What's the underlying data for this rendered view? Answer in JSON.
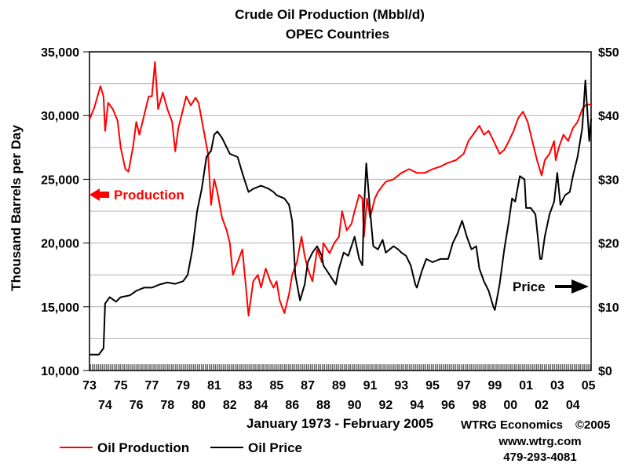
{
  "chart_data": {
    "type": "line",
    "title": "Crude Oil Production (Mbbl/d)",
    "subtitle": "OPEC Countries",
    "ylabel": "Thousand Barrels per Day",
    "xlabel": "January 1973 - February 2005",
    "ylim": [
      10000,
      35000
    ],
    "y2lim": [
      0,
      50
    ],
    "xlim": [
      1973,
      2005.17
    ],
    "y_ticks": [
      10000,
      15000,
      20000,
      25000,
      30000,
      35000
    ],
    "y_tick_labels": [
      "10,000",
      "15,000",
      "20,000",
      "25,000",
      "30,000",
      "35,000"
    ],
    "y2_ticks": [
      0,
      10,
      20,
      30,
      40,
      50
    ],
    "y2_tick_labels": [
      "$0",
      "$10",
      "$20",
      "$30",
      "$40",
      "$50"
    ],
    "x_ticks_top": [
      {
        "year": 1973,
        "label": "73"
      },
      {
        "year": 1975,
        "label": "75"
      },
      {
        "year": 1977,
        "label": "77"
      },
      {
        "year": 1979,
        "label": "79"
      },
      {
        "year": 1981,
        "label": "81"
      },
      {
        "year": 1983,
        "label": "83"
      },
      {
        "year": 1985,
        "label": "85"
      },
      {
        "year": 1987,
        "label": "87"
      },
      {
        "year": 1989,
        "label": "89"
      },
      {
        "year": 1991,
        "label": "91"
      },
      {
        "year": 1993,
        "label": "93"
      },
      {
        "year": 1995,
        "label": "95"
      },
      {
        "year": 1997,
        "label": "97"
      },
      {
        "year": 1999,
        "label": "99"
      },
      {
        "year": 2001,
        "label": "01"
      },
      {
        "year": 2003,
        "label": "03"
      },
      {
        "year": 2005,
        "label": "05"
      }
    ],
    "x_ticks_bottom": [
      {
        "year": 1974,
        "label": "74"
      },
      {
        "year": 1976,
        "label": "76"
      },
      {
        "year": 1978,
        "label": "78"
      },
      {
        "year": 1980,
        "label": "80"
      },
      {
        "year": 1982,
        "label": "82"
      },
      {
        "year": 1984,
        "label": "84"
      },
      {
        "year": 1986,
        "label": "86"
      },
      {
        "year": 1988,
        "label": "88"
      },
      {
        "year": 1990,
        "label": "90"
      },
      {
        "year": 1992,
        "label": "92"
      },
      {
        "year": 1994,
        "label": "94"
      },
      {
        "year": 1996,
        "label": "96"
      },
      {
        "year": 1998,
        "label": "98"
      },
      {
        "year": 2000,
        "label": "00"
      },
      {
        "year": 2002,
        "label": "02"
      },
      {
        "year": 2004,
        "label": "04"
      }
    ],
    "grid": true,
    "legend_position": "bottom-left",
    "series": [
      {
        "name": "Oil Production",
        "axis": "left",
        "color": "#ff0000",
        "points": [
          [
            1973.0,
            29700
          ],
          [
            1973.3,
            30600
          ],
          [
            1973.7,
            32300
          ],
          [
            1973.9,
            31500
          ],
          [
            1974.0,
            28800
          ],
          [
            1974.2,
            31000
          ],
          [
            1974.5,
            30500
          ],
          [
            1974.8,
            29600
          ],
          [
            1975.0,
            27500
          ],
          [
            1975.3,
            25800
          ],
          [
            1975.5,
            25600
          ],
          [
            1975.8,
            27600
          ],
          [
            1976.0,
            29500
          ],
          [
            1976.2,
            28500
          ],
          [
            1976.5,
            30000
          ],
          [
            1976.8,
            31500
          ],
          [
            1977.0,
            31500
          ],
          [
            1977.2,
            34200
          ],
          [
            1977.4,
            30500
          ],
          [
            1977.7,
            31800
          ],
          [
            1978.0,
            30500
          ],
          [
            1978.3,
            29500
          ],
          [
            1978.5,
            27200
          ],
          [
            1978.7,
            29000
          ],
          [
            1979.0,
            30500
          ],
          [
            1979.2,
            31500
          ],
          [
            1979.5,
            30800
          ],
          [
            1979.8,
            31400
          ],
          [
            1980.0,
            31000
          ],
          [
            1980.3,
            29000
          ],
          [
            1980.6,
            27000
          ],
          [
            1980.8,
            23000
          ],
          [
            1981.0,
            25000
          ],
          [
            1981.2,
            24000
          ],
          [
            1981.5,
            22000
          ],
          [
            1981.8,
            21000
          ],
          [
            1982.0,
            20000
          ],
          [
            1982.2,
            17500
          ],
          [
            1982.5,
            18500
          ],
          [
            1982.8,
            19500
          ],
          [
            1983.0,
            17000
          ],
          [
            1983.2,
            14300
          ],
          [
            1983.5,
            17000
          ],
          [
            1983.8,
            17500
          ],
          [
            1984.0,
            16500
          ],
          [
            1984.3,
            18000
          ],
          [
            1984.6,
            17000
          ],
          [
            1984.8,
            16500
          ],
          [
            1985.0,
            17000
          ],
          [
            1985.2,
            15500
          ],
          [
            1985.5,
            14500
          ],
          [
            1985.8,
            16000
          ],
          [
            1986.0,
            17500
          ],
          [
            1986.3,
            18500
          ],
          [
            1986.6,
            20500
          ],
          [
            1986.8,
            19000
          ],
          [
            1987.0,
            18000
          ],
          [
            1987.3,
            17000
          ],
          [
            1987.6,
            19500
          ],
          [
            1987.9,
            18500
          ],
          [
            1988.0,
            20000
          ],
          [
            1988.4,
            19200
          ],
          [
            1988.7,
            20000
          ],
          [
            1989.0,
            20500
          ],
          [
            1989.2,
            22500
          ],
          [
            1989.5,
            21000
          ],
          [
            1989.8,
            21500
          ],
          [
            1990.0,
            22500
          ],
          [
            1990.3,
            23800
          ],
          [
            1990.5,
            23500
          ],
          [
            1990.6,
            20500
          ],
          [
            1990.8,
            23500
          ],
          [
            1991.0,
            22000
          ],
          [
            1991.3,
            23500
          ],
          [
            1991.5,
            24000
          ],
          [
            1991.8,
            24500
          ],
          [
            1992.0,
            24800
          ],
          [
            1992.5,
            25000
          ],
          [
            1993.0,
            25500
          ],
          [
            1993.5,
            25800
          ],
          [
            1994.0,
            25500
          ],
          [
            1994.5,
            25500
          ],
          [
            1995.0,
            25800
          ],
          [
            1995.5,
            26000
          ],
          [
            1996.0,
            26300
          ],
          [
            1996.5,
            26500
          ],
          [
            1997.0,
            27000
          ],
          [
            1997.3,
            28000
          ],
          [
            1997.6,
            28500
          ],
          [
            1998.0,
            29200
          ],
          [
            1998.3,
            28500
          ],
          [
            1998.6,
            28800
          ],
          [
            1999.0,
            27800
          ],
          [
            1999.3,
            27000
          ],
          [
            1999.6,
            27300
          ],
          [
            1999.9,
            28000
          ],
          [
            2000.2,
            28800
          ],
          [
            2000.5,
            29800
          ],
          [
            2000.8,
            30300
          ],
          [
            2001.1,
            29500
          ],
          [
            2001.4,
            28000
          ],
          [
            2001.7,
            26500
          ],
          [
            2002.0,
            25300
          ],
          [
            2002.2,
            26500
          ],
          [
            2002.5,
            27000
          ],
          [
            2002.8,
            28000
          ],
          [
            2002.9,
            26500
          ],
          [
            2003.1,
            27500
          ],
          [
            2003.4,
            28500
          ],
          [
            2003.7,
            28000
          ],
          [
            2004.0,
            29000
          ],
          [
            2004.3,
            29500
          ],
          [
            2004.6,
            30500
          ],
          [
            2004.8,
            30800
          ],
          [
            2005.17,
            30900
          ]
        ]
      },
      {
        "name": "Oil Price",
        "axis": "right",
        "color": "#000000",
        "points": [
          [
            1973.0,
            2.5
          ],
          [
            1973.6,
            2.5
          ],
          [
            1973.9,
            3.5
          ],
          [
            1974.0,
            10.5
          ],
          [
            1974.3,
            11.5
          ],
          [
            1974.7,
            10.8
          ],
          [
            1975.0,
            11.5
          ],
          [
            1975.6,
            11.8
          ],
          [
            1976.0,
            12.5
          ],
          [
            1976.3,
            12.8
          ],
          [
            1976.5,
            13.0
          ],
          [
            1977.0,
            13.0
          ],
          [
            1977.5,
            13.5
          ],
          [
            1978.0,
            13.8
          ],
          [
            1978.5,
            13.6
          ],
          [
            1979.0,
            14.0
          ],
          [
            1979.3,
            15.0
          ],
          [
            1979.6,
            19.0
          ],
          [
            1979.9,
            25.0
          ],
          [
            1980.2,
            28.5
          ],
          [
            1980.5,
            33.5
          ],
          [
            1980.8,
            34.5
          ],
          [
            1981.0,
            37.0
          ],
          [
            1981.2,
            37.5
          ],
          [
            1981.5,
            36.5
          ],
          [
            1981.8,
            35.0
          ],
          [
            1982.0,
            34.0
          ],
          [
            1982.5,
            33.5
          ],
          [
            1982.8,
            31.0
          ],
          [
            1983.0,
            29.5
          ],
          [
            1983.2,
            28.0
          ],
          [
            1983.5,
            28.5
          ],
          [
            1984.0,
            29.0
          ],
          [
            1984.5,
            28.5
          ],
          [
            1984.8,
            28.0
          ],
          [
            1985.0,
            27.5
          ],
          [
            1985.5,
            27.0
          ],
          [
            1985.8,
            26.0
          ],
          [
            1986.0,
            23.5
          ],
          [
            1986.2,
            15.0
          ],
          [
            1986.5,
            11.0
          ],
          [
            1986.8,
            13.5
          ],
          [
            1987.0,
            17.0
          ],
          [
            1987.3,
            18.5
          ],
          [
            1987.6,
            19.5
          ],
          [
            1987.9,
            18.0
          ],
          [
            1988.0,
            16.5
          ],
          [
            1988.4,
            15.0
          ],
          [
            1988.8,
            13.5
          ],
          [
            1989.0,
            16.0
          ],
          [
            1989.3,
            18.5
          ],
          [
            1989.6,
            18.0
          ],
          [
            1989.8,
            19.5
          ],
          [
            1990.0,
            21.0
          ],
          [
            1990.3,
            17.5
          ],
          [
            1990.5,
            16.5
          ],
          [
            1990.6,
            25.0
          ],
          [
            1990.75,
            32.5
          ],
          [
            1990.9,
            28.0
          ],
          [
            1991.0,
            25.0
          ],
          [
            1991.2,
            19.5
          ],
          [
            1991.5,
            19.0
          ],
          [
            1991.8,
            20.5
          ],
          [
            1992.0,
            18.5
          ],
          [
            1992.5,
            19.5
          ],
          [
            1992.8,
            19.0
          ],
          [
            1993.0,
            18.5
          ],
          [
            1993.3,
            18.0
          ],
          [
            1993.6,
            16.5
          ],
          [
            1993.9,
            13.5
          ],
          [
            1994.0,
            13.0
          ],
          [
            1994.3,
            15.5
          ],
          [
            1994.6,
            17.5
          ],
          [
            1995.0,
            17.0
          ],
          [
            1995.5,
            17.5
          ],
          [
            1996.0,
            17.5
          ],
          [
            1996.3,
            20.0
          ],
          [
            1996.6,
            21.5
          ],
          [
            1996.9,
            23.5
          ],
          [
            1997.2,
            21.0
          ],
          [
            1997.5,
            19.0
          ],
          [
            1997.8,
            19.5
          ],
          [
            1998.0,
            16.0
          ],
          [
            1998.3,
            14.0
          ],
          [
            1998.6,
            12.5
          ],
          [
            1998.9,
            10.0
          ],
          [
            1999.0,
            9.5
          ],
          [
            1999.3,
            13.5
          ],
          [
            1999.6,
            19.0
          ],
          [
            1999.9,
            23.5
          ],
          [
            2000.1,
            27.0
          ],
          [
            2000.3,
            26.5
          ],
          [
            2000.6,
            30.5
          ],
          [
            2000.9,
            30.0
          ],
          [
            2001.0,
            25.5
          ],
          [
            2001.3,
            25.5
          ],
          [
            2001.6,
            24.5
          ],
          [
            2001.9,
            17.5
          ],
          [
            2002.0,
            17.5
          ],
          [
            2002.2,
            21.0
          ],
          [
            2002.5,
            24.5
          ],
          [
            2002.8,
            26.5
          ],
          [
            2003.0,
            31.0
          ],
          [
            2003.2,
            26.0
          ],
          [
            2003.5,
            27.5
          ],
          [
            2003.8,
            28.0
          ],
          [
            2004.0,
            30.5
          ],
          [
            2004.3,
            33.5
          ],
          [
            2004.6,
            38.0
          ],
          [
            2004.8,
            45.5
          ],
          [
            2004.95,
            40.0
          ],
          [
            2005.05,
            36.0
          ],
          [
            2005.17,
            39.5
          ]
        ]
      }
    ],
    "annotations": [
      {
        "text": "Production",
        "color": "#ff0000",
        "arrow": "left"
      },
      {
        "text": "Price",
        "color": "#000000",
        "arrow": "right"
      }
    ]
  },
  "credits": {
    "company": "WTRG Economics",
    "copyright": "©2005",
    "website": "www.wtrg.com",
    "phone": "479-293-4081"
  }
}
